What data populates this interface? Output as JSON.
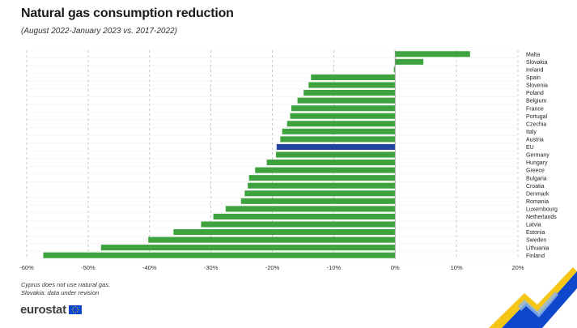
{
  "title": "Natural gas consumption reduction",
  "subtitle": "(August 2022-January 2023 vs. 2017-2022)",
  "notes": [
    "Cyprus does not use natural gas.",
    "Slovakia: data under revision"
  ],
  "brand": "eurostat",
  "colors": {
    "bar": "#3ea33e",
    "highlight": "#2144a0",
    "grid": "#bdbdbd",
    "brand_blue": "#0e47cb",
    "accent_yellow": "#f5c518"
  },
  "chart_data": {
    "type": "bar",
    "orientation": "horizontal",
    "title": "Natural gas consumption reduction",
    "subtitle": "(August 2022-January 2023 vs. 2017-2022)",
    "xlim": [
      -60,
      20
    ],
    "x_ticks": [
      "-60%",
      "-50%",
      "-40%",
      "-30%",
      "-20%",
      "-10%",
      "0%",
      "10%",
      "20%"
    ],
    "grid": true,
    "highlight": "EU",
    "categories": [
      "Malta",
      "Slovakia",
      "Ireland",
      "Spain",
      "Slovenia",
      "Poland",
      "Belgium",
      "France",
      "Portugal",
      "Czechia",
      "Italy",
      "Austria",
      "EU",
      "Germany",
      "Hungary",
      "Greece",
      "Bulgaria",
      "Croatia",
      "Denmark",
      "Romania",
      "Luxembourg",
      "Netherlands",
      "Latvia",
      "Estonia",
      "Sweden",
      "Lithuania",
      "Finland"
    ],
    "values": [
      12.2,
      4.6,
      -0.2,
      -13.7,
      -14.1,
      -14.9,
      -15.9,
      -16.9,
      -17.1,
      -17.6,
      -18.4,
      -18.7,
      -19.3,
      -19.4,
      -20.9,
      -22.8,
      -23.8,
      -24.0,
      -24.5,
      -25.1,
      -27.6,
      -29.6,
      -31.6,
      -36.1,
      -40.2,
      -47.9,
      -57.3
    ]
  }
}
